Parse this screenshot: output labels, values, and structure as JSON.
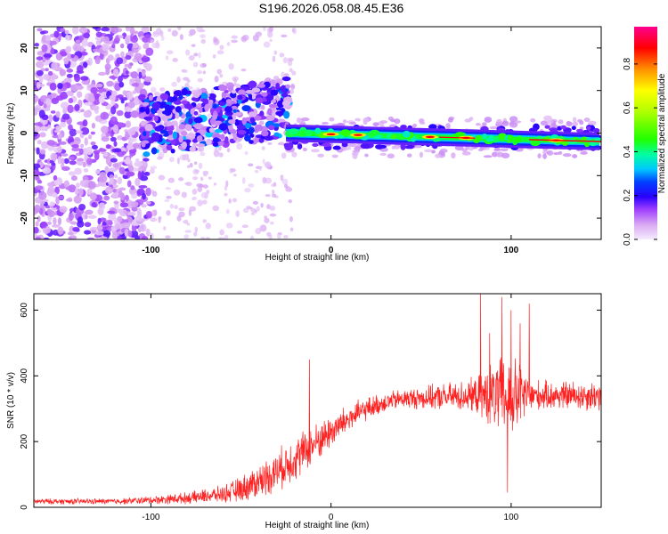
{
  "title": "S196.2026.058.08.45.E36",
  "chart_data": [
    {
      "type": "heatmap",
      "name": "spectrogram",
      "xlabel": "Height of straight line (km)",
      "ylabel": "Frequency (Hz)",
      "xlim": [
        -165,
        150
      ],
      "ylim": [
        -25,
        25
      ],
      "xticks": [
        -100,
        0,
        100
      ],
      "yticks": [
        -20,
        -10,
        0,
        10,
        20
      ],
      "colorbar": {
        "label": "Normalized spectral amplitude",
        "range": [
          0,
          0.97
        ],
        "ticks": [
          0.0,
          0.2,
          0.4,
          0.6,
          0.8
        ],
        "colormap": [
          "#f2e6ff",
          "#d7a6f2",
          "#9b30ff",
          "#3a00ff",
          "#0000ff",
          "#00d8ff",
          "#00ff7f",
          "#7fff00",
          "#ffff00",
          "#ff8000",
          "#ff0000",
          "#ff0080"
        ]
      },
      "features": {
        "scatter_region_x": [
          -165,
          -100
        ],
        "transition_region_x": [
          -100,
          -25
        ],
        "carrier_line_freq_hz_start": 0,
        "carrier_line_freq_hz_end": -2,
        "carrier_x_range": [
          -25,
          150
        ],
        "peak_amplitude_x": [
          0,
          15,
          55,
          75,
          125
        ]
      }
    },
    {
      "type": "line",
      "name": "snr",
      "xlabel": "Height of straight line (km)",
      "ylabel": "SNR (10 * v/v)",
      "xlim": [
        -165,
        150
      ],
      "ylim": [
        0,
        650
      ],
      "xticks": [
        -100,
        0,
        100
      ],
      "yticks": [
        0,
        200,
        400,
        600
      ],
      "color": "#ff2020",
      "envelope": {
        "x": [
          -165,
          -120,
          -100,
          -80,
          -60,
          -50,
          -40,
          -30,
          -20,
          -10,
          0,
          10,
          20,
          30,
          40,
          60,
          80,
          90,
          95,
          100,
          105,
          110,
          120,
          150
        ],
        "baseline": [
          18,
          18,
          22,
          28,
          40,
          55,
          80,
          110,
          150,
          190,
          230,
          270,
          300,
          320,
          330,
          335,
          340,
          340,
          335,
          335,
          338,
          340,
          340,
          340
        ],
        "amplitude": [
          10,
          10,
          14,
          20,
          30,
          45,
          60,
          70,
          80,
          70,
          60,
          50,
          40,
          35,
          35,
          45,
          60,
          120,
          140,
          150,
          120,
          60,
          50,
          55
        ]
      },
      "spikes": [
        {
          "x": -12,
          "y": 450
        },
        {
          "x": 83,
          "y": 650
        },
        {
          "x": 88,
          "y": 530
        },
        {
          "x": 95,
          "y": 640
        },
        {
          "x": 98,
          "y": 45
        },
        {
          "x": 100,
          "y": 600
        },
        {
          "x": 105,
          "y": 560
        },
        {
          "x": 110,
          "y": 620
        }
      ]
    }
  ]
}
